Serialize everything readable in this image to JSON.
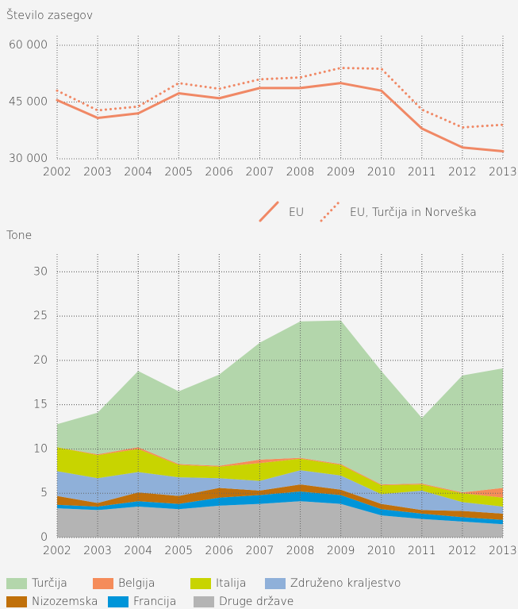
{
  "chart_data": [
    {
      "type": "line",
      "title": "Število zasegov",
      "categories": [
        "2002",
        "2003",
        "2004",
        "2005",
        "2006",
        "2007",
        "2008",
        "2009",
        "2010",
        "2011",
        "2012",
        "2013"
      ],
      "series": [
        {
          "name": "EU",
          "color": "#f08865",
          "style": "solid",
          "values": [
            45500,
            40800,
            42000,
            47300,
            46000,
            48700,
            48700,
            50000,
            48000,
            38000,
            33000,
            32000
          ]
        },
        {
          "name": "EU, Turčija in Norveška",
          "color": "#f08865",
          "style": "dotted",
          "values": [
            48000,
            42800,
            43800,
            50000,
            48500,
            51000,
            51500,
            54000,
            53800,
            43000,
            38300,
            39000
          ]
        }
      ],
      "ylim": [
        30000,
        60000
      ],
      "yticks": [
        {
          "value": 30000,
          "label": "30 000"
        },
        {
          "value": 45000,
          "label": "45 000"
        },
        {
          "value": 60000,
          "label": "60 000"
        }
      ],
      "grid": true
    },
    {
      "type": "stacked_area",
      "title": "Tone",
      "categories": [
        "2002",
        "2003",
        "2004",
        "2005",
        "2006",
        "2007",
        "2008",
        "2009",
        "2010",
        "2011",
        "2012",
        "2013"
      ],
      "series": [
        {
          "name": "Druge države",
          "color": "#b4b4b4",
          "values": [
            3.3,
            3.1,
            3.5,
            3.2,
            3.6,
            3.8,
            4.1,
            3.8,
            2.5,
            2.1,
            1.8,
            1.5
          ]
        },
        {
          "name": "Francija",
          "color": "#0095d9",
          "values": [
            0.4,
            0.4,
            0.6,
            0.6,
            0.9,
            1.0,
            1.1,
            1.0,
            0.7,
            0.6,
            0.5,
            0.5
          ]
        },
        {
          "name": "Nizozemska",
          "color": "#c0700a",
          "values": [
            1.0,
            0.4,
            1.0,
            0.9,
            1.1,
            0.5,
            0.8,
            0.6,
            0.6,
            0.4,
            0.7,
            0.7
          ]
        },
        {
          "name": "Združeno kraljestvo",
          "color": "#8fb0d9",
          "values": [
            2.8,
            2.8,
            2.3,
            2.1,
            1.1,
            1.1,
            1.6,
            1.6,
            1.1,
            2.2,
            1.0,
            0.8
          ]
        },
        {
          "name": "Italija",
          "color": "#c8d400",
          "values": [
            2.7,
            2.6,
            2.6,
            1.4,
            1.3,
            2.0,
            1.3,
            1.2,
            1.0,
            0.7,
            1.0,
            1.0
          ]
        },
        {
          "name": "Belgija",
          "color": "#f58c5a",
          "values": [
            0,
            0.1,
            0.2,
            0.1,
            0.1,
            0.4,
            0.1,
            0.1,
            0.1,
            0.1,
            0.1,
            1.1
          ]
        },
        {
          "name": "Turčija",
          "color": "#b3d6ab",
          "values": [
            2.6,
            4.7,
            8.6,
            8.2,
            10.3,
            13.2,
            15.4,
            16.2,
            12.8,
            7.4,
            13.2,
            13.5
          ]
        }
      ],
      "ylim": [
        0,
        32
      ],
      "yticks": [
        0,
        5,
        10,
        15,
        20,
        25,
        30
      ],
      "grid": true
    }
  ]
}
